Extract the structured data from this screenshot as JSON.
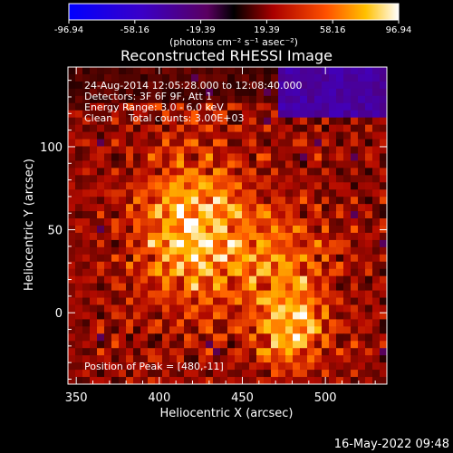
{
  "colorbar": {
    "ticks": [
      "-96.94",
      "-58.16",
      "-19.39",
      "19.39",
      "58.16",
      "96.94"
    ],
    "unit_label": "(photons cm⁻² s⁻¹ asec⁻²)",
    "vmin": -96.94,
    "vmax": 96.94
  },
  "chart_data": {
    "type": "heatmap",
    "title": "Reconstructed RHESSI Image",
    "xlabel": "Heliocentric X (arcsec)",
    "ylabel": "Heliocentric Y (arcsec)",
    "xlim": [
      345,
      537
    ],
    "ylim": [
      -43,
      148
    ],
    "xticks": [
      350,
      400,
      450,
      500
    ],
    "yticks": [
      0,
      50,
      100
    ],
    "annotations": [
      "24-Aug-2014 12:05:28.000 to 12:08:40.000",
      "Detectors: 3F 6F 9F, Att 1",
      "Energy Range: 3.0 - 6.0 keV",
      "Clean     Total counts: 3.00E+03"
    ],
    "peak_label": "Position of Peak = [480,-11]",
    "peak": [
      480,
      -11
    ],
    "brightest_region": [
      420,
      50
    ],
    "secondary_region": [
      475,
      30
    ],
    "negative_region": "top-right"
  },
  "footer": {
    "timestamp": "16-May-2022 09:48"
  },
  "colors": {
    "background": "#000000",
    "text": "#ffffff"
  }
}
